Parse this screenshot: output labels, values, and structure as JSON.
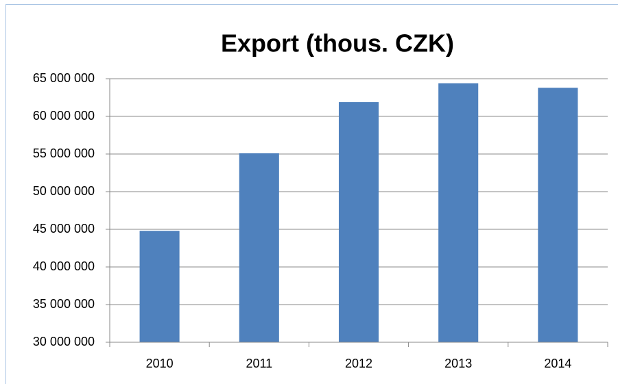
{
  "chart_data": {
    "type": "bar",
    "title": "Export (thous. CZK)",
    "categories": [
      "2010",
      "2011",
      "2012",
      "2013",
      "2014"
    ],
    "values": [
      44800000,
      55100000,
      61900000,
      64400000,
      63800000
    ],
    "color": "#4f81bd",
    "ylim": [
      30000000,
      65000000
    ],
    "yticks": [
      {
        "value": 30000000,
        "label": "30 000 000"
      },
      {
        "value": 35000000,
        "label": "35 000 000"
      },
      {
        "value": 40000000,
        "label": "40 000 000"
      },
      {
        "value": 45000000,
        "label": "45 000 000"
      },
      {
        "value": 50000000,
        "label": "50 000 000"
      },
      {
        "value": 55000000,
        "label": "55 000 000"
      },
      {
        "value": 60000000,
        "label": "60 000 000"
      },
      {
        "value": 65000000,
        "label": "65 000 000"
      }
    ],
    "grid": true
  }
}
